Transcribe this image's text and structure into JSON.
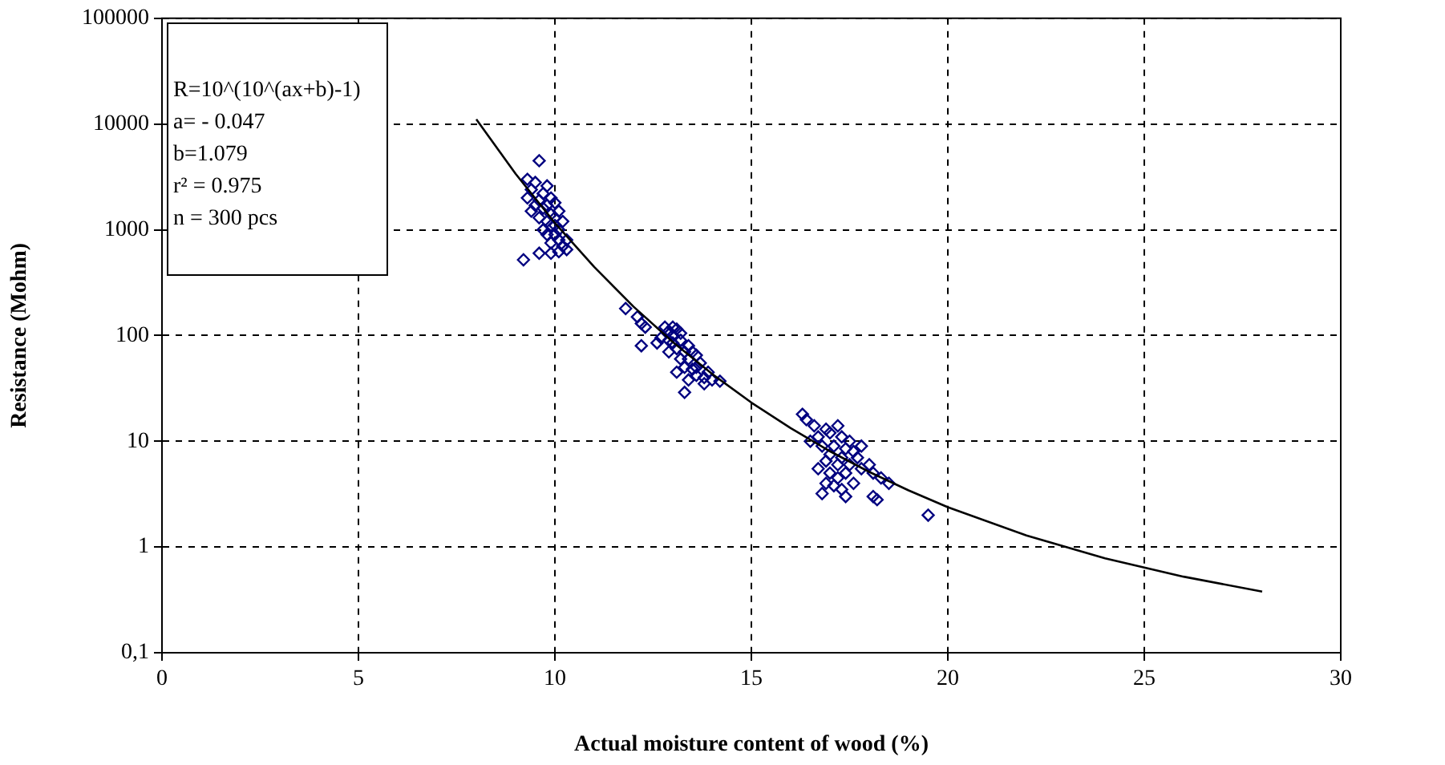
{
  "chart_data": {
    "type": "scatter",
    "xlabel": "Actual moisture content of wood (%)",
    "ylabel": "Resistance (Mohm)",
    "log": "y",
    "grid": true,
    "line_style": "dashed",
    "marker": "diamond",
    "xlim": [
      0,
      30
    ],
    "xticks": [
      0,
      5,
      10,
      15,
      20,
      25,
      30
    ],
    "ylim": [
      0.1,
      100000
    ],
    "yticks": [
      {
        "value": 0.1,
        "label": "0,1"
      },
      1,
      10,
      100,
      1000,
      10000,
      100000
    ],
    "annotations": [
      "R=10^(10^(ax+b)-1)",
      "a= - 0.047",
      "b=1.079",
      "r² = 0.975",
      "n = 300 pcs"
    ],
    "series": [
      {
        "type": "scatter",
        "color": "#000080",
        "x": [
          9.6,
          9.3,
          9.5,
          9.8,
          9.4,
          9.7,
          9.9,
          9.6,
          9.3,
          10.0,
          9.8,
          9.7,
          10.1,
          9.9,
          9.6,
          10.0,
          9.8,
          10.2,
          9.9,
          10.1,
          9.7,
          10.0,
          9.8,
          10.3,
          10.1,
          9.9,
          10.2,
          10.3,
          10.1,
          9.2,
          9.6,
          9.9,
          9.4,
          9.5,
          10.0,
          11.8,
          12.1,
          12.2,
          12.3,
          12.2,
          12.8,
          12.9,
          13.0,
          13.1,
          13.2,
          12.7,
          12.9,
          13.0,
          13.2,
          13.4,
          13.1,
          13.3,
          13.5,
          12.9,
          13.2,
          13.4,
          13.6,
          13.7,
          13.3,
          13.5,
          13.1,
          13.6,
          13.8,
          14.0,
          14.2,
          13.4,
          13.8,
          13.3,
          12.6,
          13.0,
          13.6,
          13.9,
          16.3,
          16.4,
          16.6,
          16.9,
          17.2,
          16.7,
          17.0,
          17.3,
          17.5,
          16.5,
          16.8,
          17.1,
          17.4,
          17.6,
          17.0,
          17.3,
          17.7,
          16.9,
          17.2,
          17.5,
          17.8,
          18.0,
          16.7,
          17.0,
          17.4,
          18.1,
          18.3,
          17.2,
          16.9,
          17.6,
          18.5,
          17.3,
          16.8,
          17.4,
          18.1,
          18.2,
          19.5,
          17.1,
          17.8
        ],
        "values": [
          4500,
          3000,
          2800,
          2600,
          2400,
          2200,
          2000,
          1900,
          2000,
          1800,
          1700,
          1600,
          1500,
          1400,
          1300,
          1300,
          1200,
          1200,
          1100,
          1000,
          1000,
          900,
          900,
          800,
          800,
          750,
          700,
          650,
          620,
          520,
          600,
          600,
          1500,
          1700,
          1100,
          180,
          150,
          130,
          120,
          80,
          120,
          110,
          120,
          115,
          105,
          95,
          90,
          85,
          90,
          80,
          75,
          70,
          70,
          70,
          60,
          60,
          65,
          55,
          50,
          48,
          45,
          42,
          40,
          38,
          37,
          38,
          35,
          29,
          85,
          100,
          50,
          45,
          18,
          16,
          14,
          13,
          14,
          11,
          12,
          11,
          10,
          10,
          9,
          9,
          8.5,
          8,
          7.5,
          7,
          7,
          6.5,
          6,
          6,
          5.5,
          6,
          5.5,
          5,
          5,
          5,
          4.5,
          4.5,
          4,
          4,
          4,
          3.5,
          3.2,
          3,
          3,
          2.8,
          2,
          3.8,
          9
        ]
      },
      {
        "type": "line",
        "color": "#000000",
        "marker": "none",
        "line_style": "solid",
        "x": [
          8,
          9,
          10,
          11,
          12,
          13,
          14,
          15,
          16,
          17,
          18,
          19,
          20,
          22,
          24,
          26,
          28
        ],
        "values": [
          11100,
          3380,
          1160,
          445,
          187.5,
          86.7,
          43.3,
          23.2,
          13.3,
          8.04,
          5.13,
          3.43,
          2.38,
          1.285,
          0.781,
          0.524,
          0.379
        ]
      }
    ]
  }
}
